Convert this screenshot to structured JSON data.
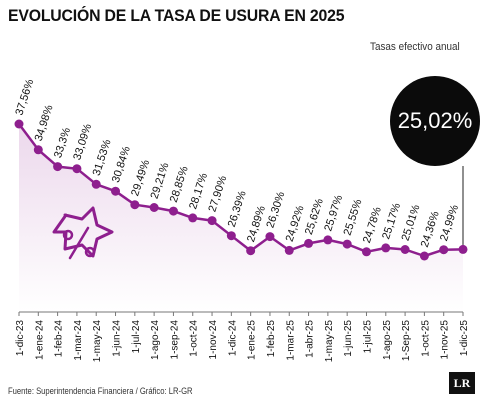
{
  "title": "EVOLUCIÓN DE LA TASA DE USURA EN 2025",
  "subtitle": "Tasas efectivo anual",
  "highlight": "25,02%",
  "source": "Fuente: Superintendencia Financiera / Gráfico: LR-GR",
  "logo": "LR",
  "colors": {
    "line": "#8e1f8e",
    "area": "#ecd8ec",
    "badge": "#0b0b0b"
  },
  "icon": "percent-icon",
  "chart_data": {
    "type": "area",
    "x": [
      "1-dic-23",
      "1-ene-24",
      "1-feb-24",
      "1-mar-24",
      "1-may-24",
      "1-jun-24",
      "1-jul-24",
      "1-ago-24",
      "1-sep-24",
      "1-oct-24",
      "1-nov-24",
      "1-dic-24",
      "1-ene-25",
      "1-feb-25",
      "1-mar-25",
      "1-abr-25",
      "1-may-25",
      "1-jun-25",
      "1-jul-25",
      "1-ago-25",
      "1-Sep-25",
      "1-oct-25",
      "1-nov-25",
      "1-dic-25"
    ],
    "values": [
      37.56,
      34.98,
      33.3,
      33.09,
      31.53,
      30.84,
      29.49,
      29.21,
      28.85,
      28.17,
      27.9,
      26.39,
      24.89,
      26.3,
      24.92,
      25.62,
      25.97,
      25.55,
      24.78,
      25.17,
      25.01,
      24.36,
      24.99,
      25.02
    ],
    "labels": [
      "37,56%",
      "34,98%",
      "33,3%",
      "33,09%",
      "31,53%",
      "30,84%",
      "29,49%",
      "29,21%",
      "28,85%",
      "28,17%",
      "27,90%",
      "26,39%",
      "24,89%",
      "26,30%",
      "24,92%",
      "25,62%",
      "25,97%",
      "25,55%",
      "24,78%",
      "25,17%",
      "25,01%",
      "24,36%",
      "24,99%",
      ""
    ],
    "ylim": [
      21.5,
      39
    ],
    "grid": false,
    "legend": "none"
  }
}
